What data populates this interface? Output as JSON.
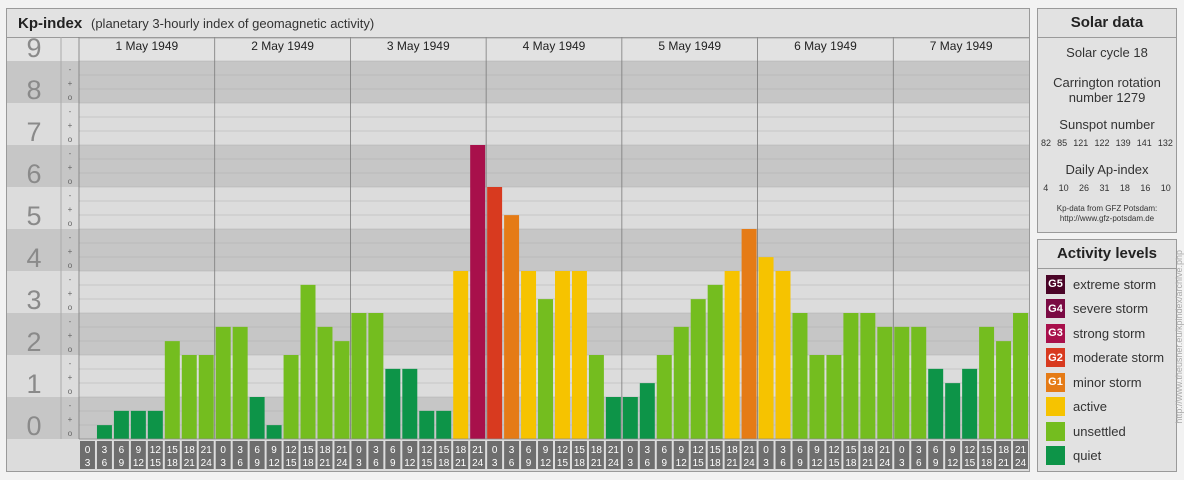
{
  "header": {
    "title": "Kp-index",
    "subtitle": "(planetary 3-hourly index of geomagnetic activity)"
  },
  "chart_data": {
    "type": "bar",
    "title": "Kp-index",
    "subtitle": "(planetary 3-hourly index of geomagnetic activity)",
    "ylim": [
      0,
      9
    ],
    "y_ticks": [
      "0",
      "1",
      "2",
      "3",
      "4",
      "5",
      "6",
      "7",
      "8",
      "9"
    ],
    "thirds_labels": [
      "o",
      "+",
      "-"
    ],
    "days": [
      "1 May 1949",
      "2 May 1949",
      "3 May 1949",
      "4 May 1949",
      "5 May 1949",
      "6 May 1949",
      "7 May 1949"
    ],
    "time_slots_top": [
      "0",
      "3",
      "6",
      "9",
      "12",
      "15",
      "18",
      "21"
    ],
    "time_slots_bottom": [
      "3",
      "6",
      "9",
      "12",
      "15",
      "18",
      "21",
      "24"
    ],
    "series": [
      {
        "values": [
          0.0,
          0.33,
          0.67,
          0.67,
          0.67,
          2.33,
          2.0,
          2.0,
          2.67,
          2.67,
          1.0,
          0.33,
          2.0,
          3.67,
          2.67,
          2.33,
          3.0,
          3.0,
          1.67,
          1.67,
          0.67,
          0.67,
          4.0,
          7.0,
          6.0,
          5.33,
          4.0,
          3.33,
          4.0,
          4.0,
          2.0,
          1.0,
          1.0,
          1.33,
          2.0,
          2.67,
          3.33,
          3.67,
          4.0,
          5.0,
          4.33,
          4.0,
          3.0,
          2.0,
          2.0,
          3.0,
          3.0,
          2.67,
          2.67,
          2.67,
          1.67,
          1.33,
          1.67,
          2.67,
          2.33,
          3.0
        ]
      }
    ],
    "colors": {
      "quiet": "#0d9448",
      "unsettled": "#74bd1f",
      "active": "#f6c300",
      "minor": "#e57b16",
      "moderate": "#d83a1f",
      "strong": "#a8104b",
      "severe": "#7a0a43",
      "extreme": "#4a0427",
      "band_dark": "#c6c6c6",
      "band_light": "#dcdcdc",
      "time_box": "#6e6e6e"
    }
  },
  "solar": {
    "title": "Solar data",
    "cycle": "Solar cycle 18",
    "carrington_line1": "Carrington rotation",
    "carrington_line2": "number 1279",
    "sunspot_label": "Sunspot number",
    "sunspot_values": [
      "82",
      "85",
      "121",
      "122",
      "139",
      "141",
      "132"
    ],
    "ap_label": "Daily Ap-index",
    "ap_values": [
      "4",
      "10",
      "26",
      "31",
      "18",
      "16",
      "10"
    ],
    "source_line1": "Kp-data from GFZ Potsdam:",
    "source_line2": "http://www.gfz-potsdam.de"
  },
  "levels": {
    "title": "Activity levels",
    "items": [
      {
        "code": "G5",
        "label": "extreme storm",
        "color": "#4a0427"
      },
      {
        "code": "G4",
        "label": "severe storm",
        "color": "#7a0a43"
      },
      {
        "code": "G3",
        "label": "strong storm",
        "color": "#a8104b"
      },
      {
        "code": "G2",
        "label": "moderate storm",
        "color": "#d83a1f"
      },
      {
        "code": "G1",
        "label": "minor storm",
        "color": "#e57b16"
      },
      {
        "code": "",
        "label": "active",
        "color": "#f6c300"
      },
      {
        "code": "",
        "label": "unsettled",
        "color": "#74bd1f"
      },
      {
        "code": "",
        "label": "quiet",
        "color": "#0d9448"
      }
    ]
  },
  "watermark": "http://www.theusner.eu/kpindex/archive.php"
}
